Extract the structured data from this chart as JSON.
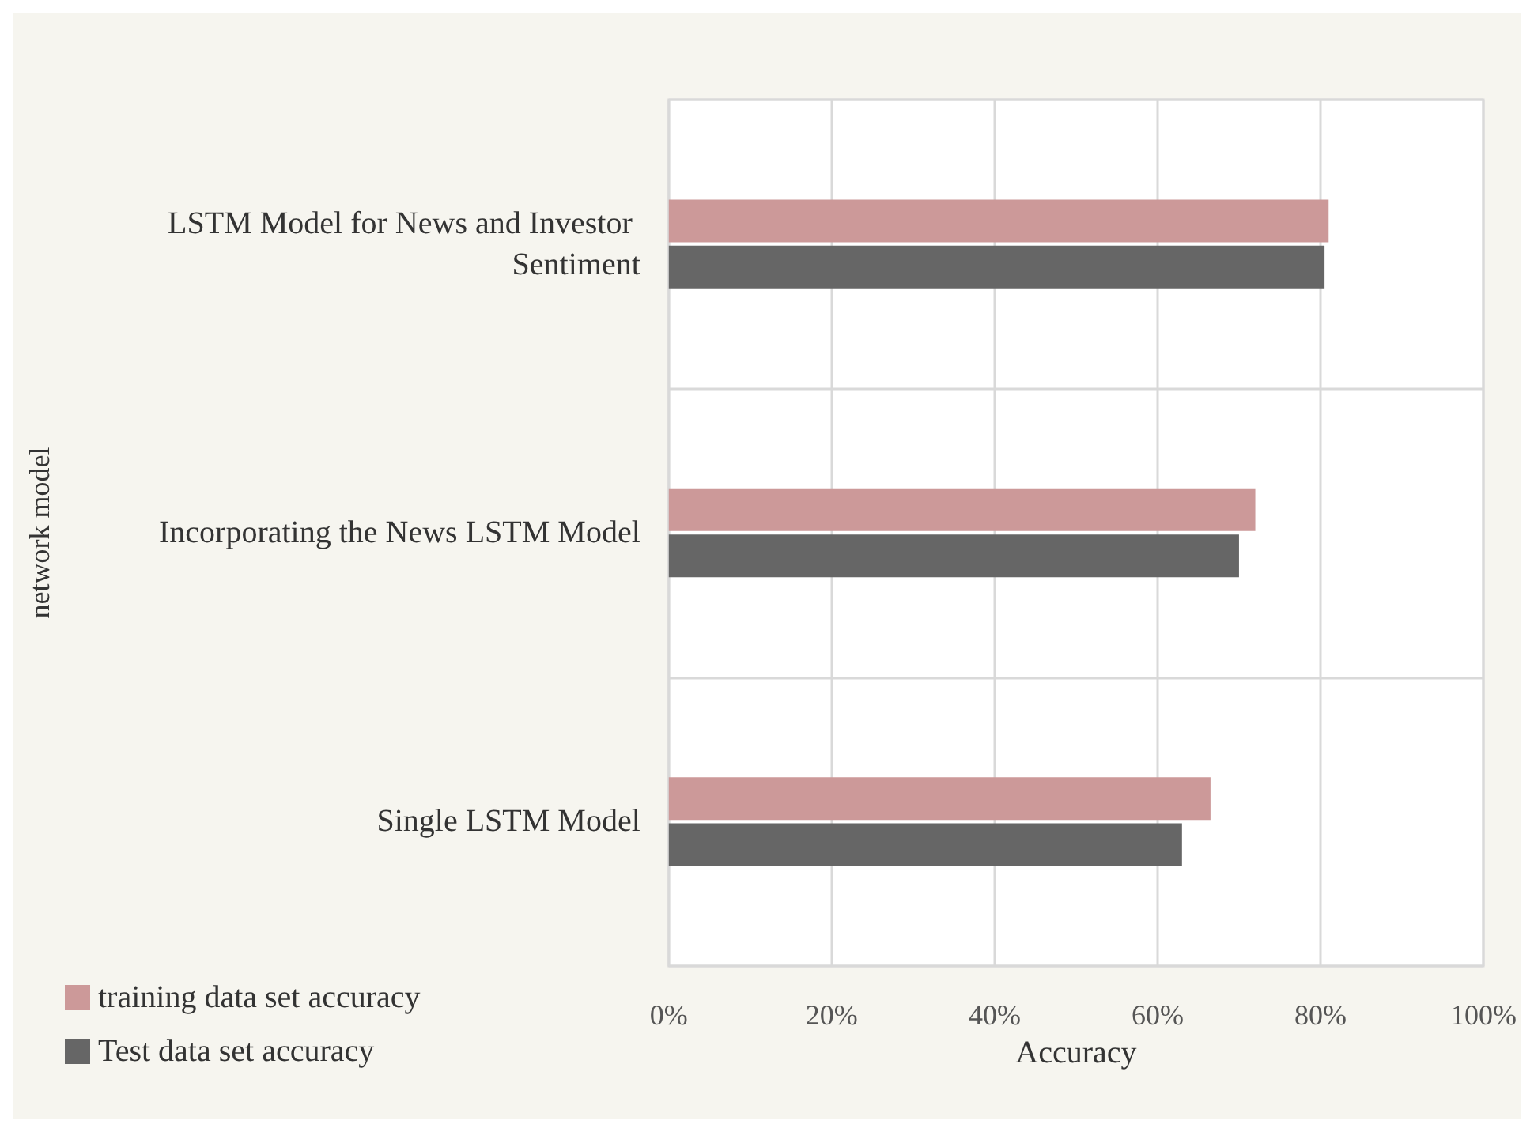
{
  "chart_data": {
    "type": "bar",
    "orientation": "horizontal",
    "xlabel": "Accuracy",
    "ylabel": "network model",
    "categories": [
      "LSTM Model for News and Investor Sentiment",
      "Incorporating the News LSTM Model",
      "Single LSTM Model"
    ],
    "series": [
      {
        "name": "training data set accuracy",
        "color": "#cc9999",
        "values": [
          81,
          72,
          66.5
        ]
      },
      {
        "name": "Test data set accuracy",
        "color": "#666666",
        "values": [
          80.5,
          70,
          63
        ]
      }
    ],
    "xlim": [
      0,
      100
    ],
    "xticks": [
      {
        "value": 0,
        "label": "0%"
      },
      {
        "value": 20,
        "label": "20%"
      },
      {
        "value": 40,
        "label": "40%"
      },
      {
        "value": 60,
        "label": "60%"
      },
      {
        "value": 80,
        "label": "80%"
      },
      {
        "value": 100,
        "label": "100%"
      }
    ],
    "grid": true,
    "legend": "bottom left"
  }
}
